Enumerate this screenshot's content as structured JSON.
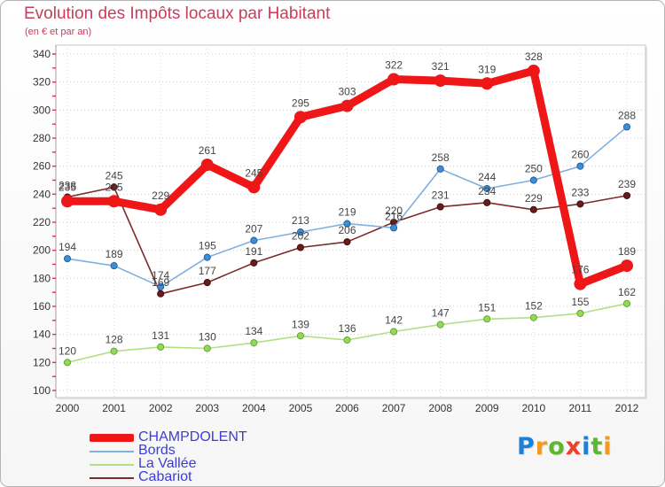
{
  "logo": {
    "text": "Proxiti",
    "colors": [
      "#1f7fd6",
      "#f29a1f",
      "#5cb82c",
      "#e8412c",
      "#1f7fd6",
      "#5cb82c",
      "#f29a1f"
    ]
  },
  "chart_data": {
    "type": "line",
    "title": "Evolution des Impôts locaux par Habitant",
    "subtitle": "(en € et par an)",
    "x": [
      2000,
      2001,
      2002,
      2003,
      2004,
      2005,
      2006,
      2007,
      2008,
      2009,
      2010,
      2011,
      2012
    ],
    "ylim": [
      100,
      340
    ],
    "yticks": [
      100,
      120,
      140,
      160,
      180,
      200,
      220,
      240,
      260,
      280,
      300,
      320,
      340
    ],
    "grid": true,
    "legend": "bottom-left",
    "series": [
      {
        "name": "CHAMPDOLENT",
        "color": "#ee1616",
        "marker_color": "#ee1616",
        "marker_edge": "#ee1616",
        "values": [
          235,
          235,
          229,
          261,
          245,
          295,
          303,
          322,
          321,
          319,
          328,
          176,
          189
        ]
      },
      {
        "name": "Bords",
        "color": "#7fb0e0",
        "marker_color": "#3e8ed6",
        "marker_edge": "#1f5a94",
        "values": [
          194,
          189,
          174,
          195,
          207,
          213,
          219,
          216,
          258,
          244,
          250,
          260,
          288
        ]
      },
      {
        "name": "La Vallée",
        "color": "#b0e080",
        "marker_color": "#93d957",
        "marker_edge": "#5e9f2f",
        "values": [
          120,
          128,
          131,
          130,
          134,
          139,
          136,
          142,
          147,
          151,
          152,
          155,
          162
        ]
      },
      {
        "name": "Cabariot",
        "color": "#7b2b2b",
        "marker_color": "#6a1b1b",
        "marker_edge": "#3d0b0b",
        "values": [
          238,
          245,
          169,
          177,
          191,
          202,
          206,
          220,
          231,
          234,
          229,
          233,
          239
        ]
      }
    ]
  }
}
